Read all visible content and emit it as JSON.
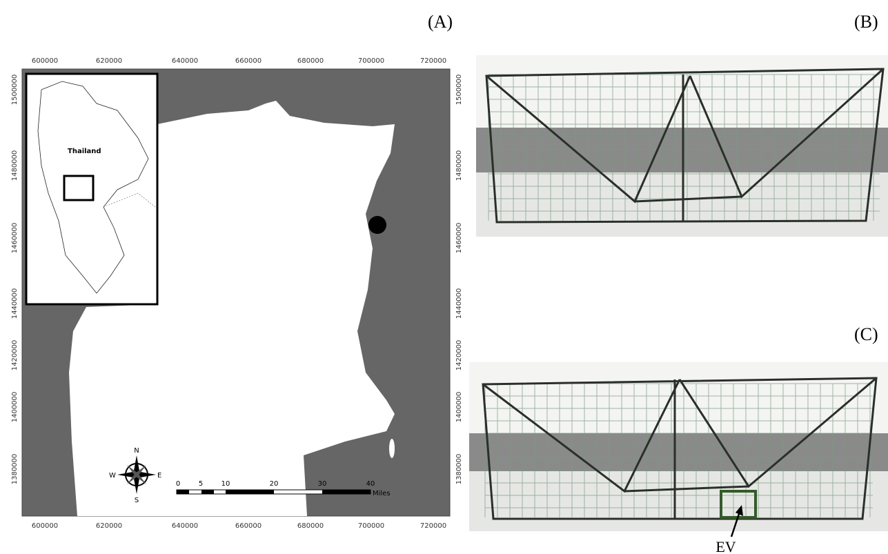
{
  "panel_labels": {
    "a": "(A)",
    "b": "(B)",
    "c": "(C)"
  },
  "map": {
    "x_ticks": [
      600000,
      620000,
      640000,
      660000,
      680000,
      700000,
      720000
    ],
    "y_ticks": [
      1500000,
      1480000,
      1460000,
      1440000,
      1420000,
      1400000,
      1380000
    ],
    "inset_label": "Thailand",
    "compass": {
      "n": "N",
      "s": "S",
      "e": "E",
      "w": "W"
    },
    "scale_bar": {
      "ticks": [
        0,
        5,
        10,
        20,
        30,
        40
      ],
      "unit": "Miles"
    }
  },
  "photo_c": {
    "annotation": "EV"
  }
}
